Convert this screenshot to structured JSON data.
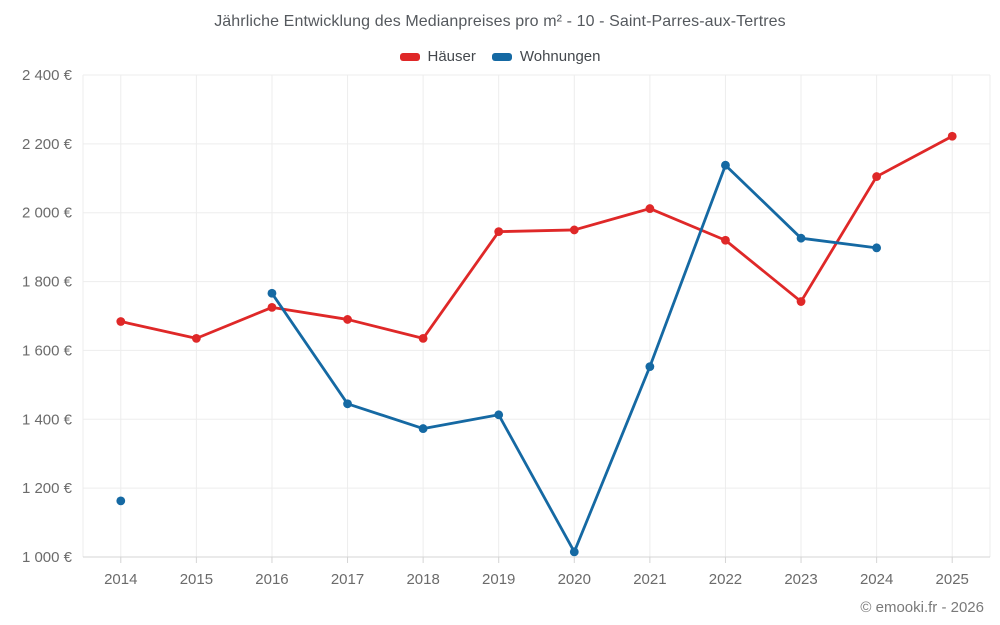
{
  "title": "Jährliche Entwicklung des Medianpreises pro m² - 10 - Saint-Parres-aux-Tertres",
  "footer": "© emooki.fr - 2026",
  "legend": [
    {
      "label": "Häuser",
      "color": "#df2828"
    },
    {
      "label": "Wohnungen",
      "color": "#1569a3"
    }
  ],
  "chart_data": {
    "type": "line",
    "title": "Jährliche Entwicklung des Medianpreises pro m² - 10 - Saint-Parres-aux-Tertres",
    "x": [
      2014,
      2015,
      2016,
      2017,
      2018,
      2019,
      2020,
      2021,
      2022,
      2023,
      2024,
      2025
    ],
    "series": [
      {
        "name": "Häuser",
        "color": "#df2828",
        "values": [
          1684,
          1635,
          1725,
          1690,
          1635,
          1945,
          1950,
          2012,
          1920,
          1742,
          2105,
          2222
        ]
      },
      {
        "name": "Wohnungen",
        "color": "#1569a3",
        "values": [
          1163,
          null,
          1766,
          1445,
          1373,
          1413,
          1015,
          1553,
          2138,
          1926,
          1898,
          null
        ]
      }
    ],
    "xlabel": "",
    "ylabel": "",
    "ylim": [
      1000,
      2400
    ],
    "ytick_step": 200,
    "yticks": [
      1000,
      1200,
      1400,
      1600,
      1800,
      2000,
      2200,
      2400
    ],
    "ytick_labels": [
      "1 000 €",
      "1 200 €",
      "1 400 €",
      "1 600 €",
      "1 800 €",
      "2 000 €",
      "2 200 €",
      "2 400 €"
    ],
    "grid": true,
    "legend_position": "top",
    "marker": "circle"
  }
}
